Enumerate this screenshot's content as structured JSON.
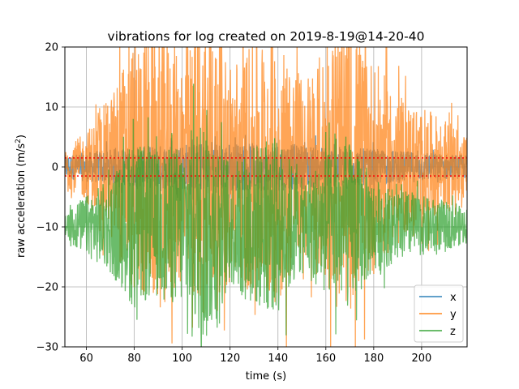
{
  "chart_data": {
    "type": "line",
    "title": "vibrations for log created on 2019-8-19@14-20-40",
    "xlabel": "time (s)",
    "ylabel": "raw acceleration (m/s",
    "ylabel_sup": "2",
    "ylabel_end": ")",
    "xlim": [
      51,
      219
    ],
    "ylim": [
      -30,
      20
    ],
    "xticks": [
      60,
      80,
      100,
      120,
      140,
      160,
      180,
      200
    ],
    "yticks": [
      -30,
      -20,
      -10,
      0,
      10,
      20
    ],
    "grid": true,
    "legend_position": "lower-right",
    "series": [
      {
        "name": "x",
        "color": "#1f77b4",
        "center": 0,
        "envelope": [
          [
            51,
            2
          ],
          [
            70,
            3
          ],
          [
            100,
            4
          ],
          [
            140,
            4
          ],
          [
            180,
            3
          ],
          [
            219,
            2
          ]
        ]
      },
      {
        "name": "y",
        "color": "#ff7f0e",
        "center": 0,
        "envelope": [
          [
            51,
            3
          ],
          [
            60,
            6
          ],
          [
            70,
            12
          ],
          [
            80,
            22
          ],
          [
            90,
            24
          ],
          [
            100,
            20
          ],
          [
            110,
            25
          ],
          [
            120,
            18
          ],
          [
            130,
            22
          ],
          [
            140,
            23
          ],
          [
            150,
            15
          ],
          [
            160,
            20
          ],
          [
            170,
            24
          ],
          [
            180,
            18
          ],
          [
            190,
            12
          ],
          [
            200,
            10
          ],
          [
            210,
            8
          ],
          [
            219,
            5
          ]
        ]
      },
      {
        "name": "z",
        "color": "#2ca02c",
        "center": -9.8,
        "envelope": [
          [
            51,
            3
          ],
          [
            60,
            5
          ],
          [
            70,
            8
          ],
          [
            80,
            14
          ],
          [
            90,
            12
          ],
          [
            100,
            14
          ],
          [
            110,
            20
          ],
          [
            120,
            10
          ],
          [
            130,
            14
          ],
          [
            140,
            15
          ],
          [
            150,
            8
          ],
          [
            160,
            12
          ],
          [
            170,
            14
          ],
          [
            180,
            8
          ],
          [
            190,
            6
          ],
          [
            200,
            5
          ],
          [
            210,
            4
          ],
          [
            219,
            3
          ]
        ]
      }
    ],
    "threshold_lines": {
      "color": "#ff0000",
      "style": "dotted",
      "y": [
        1.5,
        -1.5
      ]
    }
  }
}
